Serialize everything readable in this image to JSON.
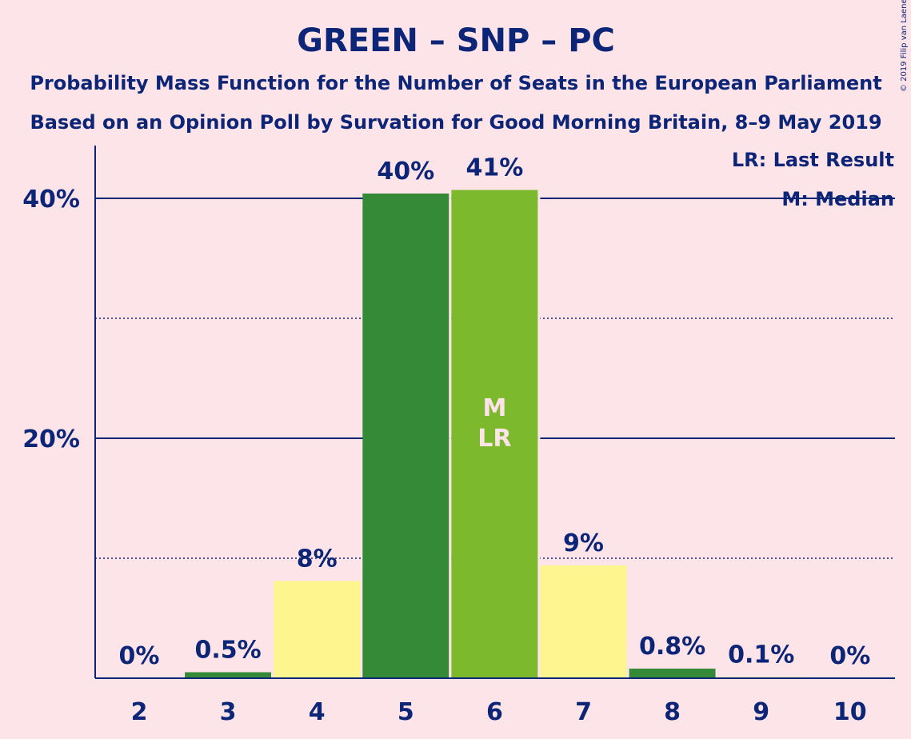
{
  "header": {
    "title": "GREEN – SNP – PC",
    "subtitle1": "Probability Mass Function for the Number of Seats in the European Parliament",
    "subtitle2": "Based on an Opinion Poll by Survation for Good Morning Britain, 8–9 May 2019"
  },
  "legend": {
    "lr": "LR: Last Result",
    "m": "M: Median"
  },
  "copyright": "© 2019 Filip van Laenen",
  "colors": {
    "background": "#fde4e8",
    "axis": "#0c2577",
    "dark_green": "#358a37",
    "light_green": "#7db92d",
    "yellow": "#fff58f"
  },
  "chart_data": {
    "type": "bar",
    "categories": [
      "2",
      "3",
      "4",
      "5",
      "6",
      "7",
      "8",
      "9",
      "10"
    ],
    "values": [
      0,
      0.5,
      8.1,
      40.4,
      40.7,
      9.4,
      0.8,
      0.1,
      0
    ],
    "value_labels": [
      "0%",
      "0.5%",
      "8%",
      "40%",
      "41%",
      "9%",
      "0.8%",
      "0.1%",
      "0%"
    ],
    "bar_colors": [
      "yellow",
      "dark_green",
      "yellow",
      "dark_green",
      "light_green",
      "yellow",
      "dark_green",
      "yellow",
      "yellow"
    ],
    "median_category": "6",
    "last_result_category": "6",
    "median_marker": "M",
    "last_result_marker": "LR",
    "ylim": [
      0,
      44
    ],
    "y_ticks": [
      {
        "value": 20,
        "label": "20%"
      },
      {
        "value": 40,
        "label": "40%"
      }
    ],
    "minor_gridlines": [
      10,
      30
    ],
    "major_gridlines": [
      20,
      40
    ],
    "legend_position": "top-right"
  }
}
